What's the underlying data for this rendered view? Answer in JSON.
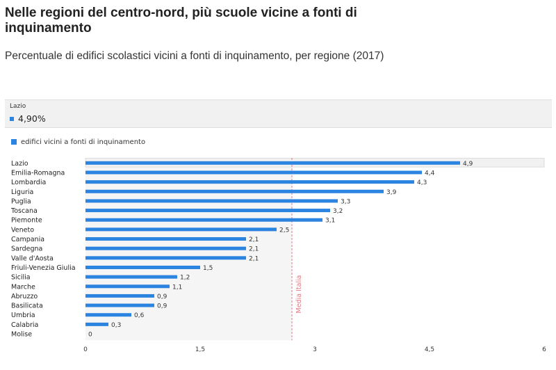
{
  "title": "Nelle regioni del centro-nord, più scuole vicine a fonti di inquinamento",
  "subtitle": "Percentuale di edifici scolastici vicini a fonti di inquinamento, per regione (2017)",
  "tooltip": {
    "region": "Lazio",
    "value": "4,90%"
  },
  "colors": {
    "bar": "#2b84e0",
    "reference_line": "#e07a85",
    "highlight_band": "#f1f1f1"
  },
  "chart_data": {
    "type": "bar",
    "orientation": "horizontal",
    "categories": [
      "Lazio",
      "Emilia-Romagna",
      "Lombardia",
      "Liguria",
      "Puglia",
      "Toscana",
      "Piemonte",
      "Veneto",
      "Campania",
      "Sardegna",
      "Valle d'Aosta",
      "Friuli-Venezia Giulia",
      "Sicilia",
      "Marche",
      "Abruzzo",
      "Basilicata",
      "Umbria",
      "Calabria",
      "Molise"
    ],
    "series": [
      {
        "name": "edifici vicini a fonti di inquinamento",
        "values": [
          4.9,
          4.4,
          4.3,
          3.9,
          3.3,
          3.2,
          3.1,
          2.5,
          2.1,
          2.1,
          2.1,
          1.5,
          1.2,
          1.1,
          0.9,
          0.9,
          0.6,
          0.3,
          0
        ]
      }
    ],
    "value_labels": [
      "4,9",
      "4,4",
      "4,3",
      "3,9",
      "3,3",
      "3,2",
      "3,1",
      "2,5",
      "2,1",
      "2,1",
      "2,1",
      "1,5",
      "1,2",
      "1,1",
      "0,9",
      "0,9",
      "0,6",
      "0,3",
      "0"
    ],
    "xlim": [
      0,
      6
    ],
    "x_ticks": [
      0,
      1.5,
      3,
      4.5,
      6
    ],
    "x_tick_labels": [
      "0",
      "1,5",
      "3",
      "4,5",
      "6"
    ],
    "reference_line": {
      "label": "Media Italia",
      "value": 2.7
    },
    "highlighted_category": "Lazio",
    "legend_position": "top-left",
    "grid": false
  }
}
